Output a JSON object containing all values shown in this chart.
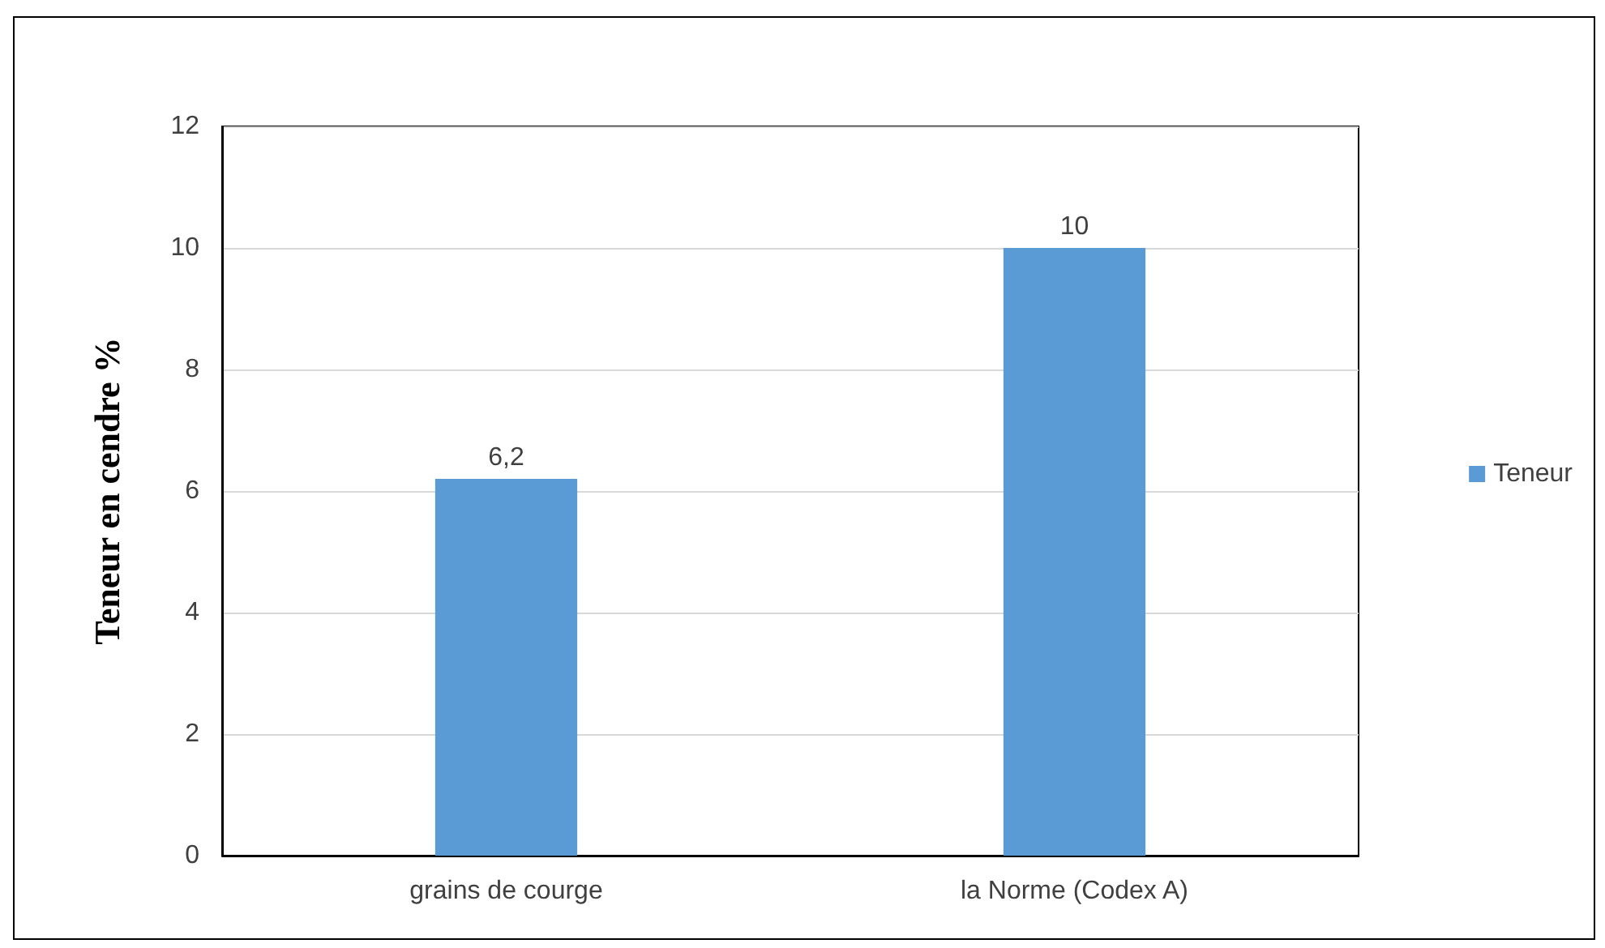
{
  "chart_data": {
    "type": "bar",
    "ylabel": "Teneur en cendre %",
    "categories": [
      "grains de courge",
      "la Norme (Codex A)"
    ],
    "series": [
      {
        "name": "Teneur",
        "color": "#5b9bd5",
        "values": [
          6.2,
          10
        ],
        "value_labels": [
          "6,2",
          "10"
        ]
      }
    ],
    "ylim": [
      0,
      12
    ],
    "yticks": [
      0,
      2,
      4,
      6,
      8,
      10,
      12
    ],
    "grid": "y",
    "legend": "right"
  }
}
